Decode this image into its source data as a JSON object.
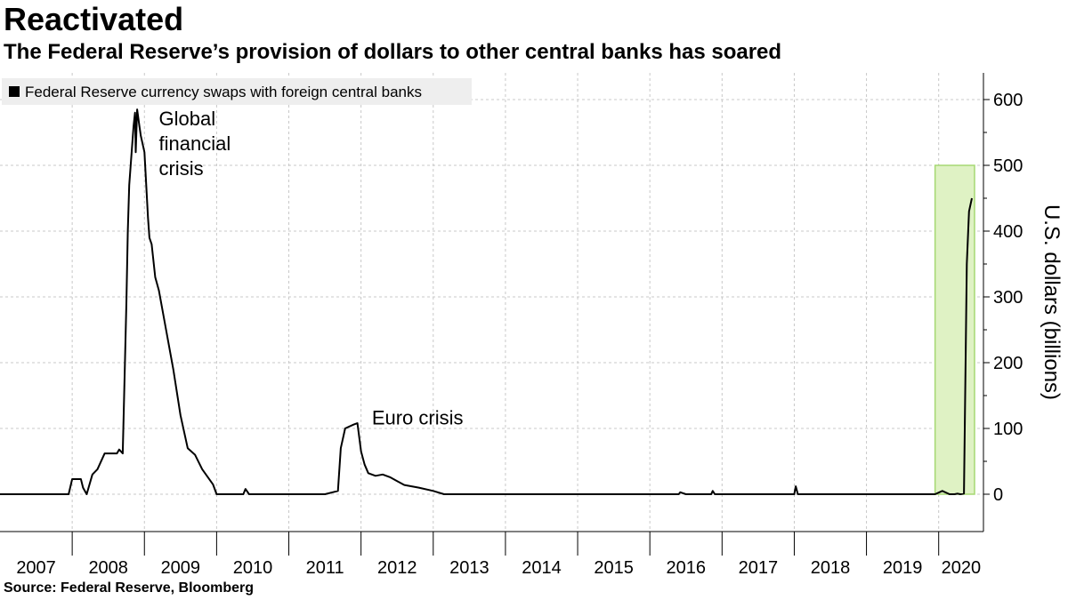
{
  "header": {
    "title": "Reactivated",
    "subtitle": "The Federal Reserve’s provision of dollars to other central banks has soared"
  },
  "footer": {
    "source": "Source: Federal Reserve, Bloomberg"
  },
  "colors": {
    "line": "#000000",
    "highlight_fill": "#dff2c4",
    "highlight_stroke": "#a6d873",
    "grid": "#c8c8c8",
    "legend_bg": "#eeeeee"
  },
  "chart_data": {
    "type": "line",
    "title": "Reactivated",
    "subtitle": "The Federal Reserve’s provision of dollars to other central banks has soared",
    "xlabel": "",
    "ylabel": "U.S. dollars (billions)",
    "xlim": [
      2007.0,
      2020.62
    ],
    "ylim": [
      -55,
      640
    ],
    "yticks": [
      0,
      100,
      200,
      300,
      400,
      500,
      600
    ],
    "year_labels": [
      "2007",
      "2008",
      "2009",
      "2010",
      "2011",
      "2012",
      "2013",
      "2014",
      "2015",
      "2016",
      "2017",
      "2018",
      "2019",
      "2020"
    ],
    "grid": true,
    "legend_position": "top-left",
    "series": [
      {
        "name": "Federal Reserve currency swaps with foreign central banks",
        "x": [
          2007.0,
          2007.95,
          2008.0,
          2008.12,
          2008.15,
          2008.2,
          2008.28,
          2008.35,
          2008.45,
          2008.55,
          2008.62,
          2008.65,
          2008.7,
          2008.75,
          2008.77,
          2008.79,
          2008.85,
          2008.87,
          2008.88,
          2008.9,
          2008.93,
          2008.95,
          2009.0,
          2009.05,
          2009.07,
          2009.1,
          2009.15,
          2009.2,
          2009.3,
          2009.4,
          2009.5,
          2009.6,
          2009.7,
          2009.8,
          2009.95,
          2010.0,
          2010.37,
          2010.4,
          2010.45,
          2010.6,
          2011.5,
          2011.68,
          2011.72,
          2011.78,
          2011.82,
          2011.9,
          2011.95,
          2012.0,
          2012.05,
          2012.1,
          2012.2,
          2012.3,
          2012.4,
          2012.5,
          2012.6,
          2012.8,
          2013.0,
          2013.15,
          2013.4,
          2016.0,
          2016.4,
          2016.42,
          2016.5,
          2016.85,
          2016.87,
          2016.9,
          2018.0,
          2018.02,
          2018.05,
          2019.1,
          2019.75,
          2019.95,
          2020.05,
          2020.15,
          2020.22,
          2020.26,
          2020.3,
          2020.35,
          2020.39,
          2020.42,
          2020.46
        ],
        "values": [
          0,
          0,
          23,
          23,
          10,
          0,
          30,
          38,
          62,
          62,
          62,
          68,
          62,
          290,
          400,
          470,
          560,
          580,
          520,
          585,
          560,
          545,
          520,
          420,
          390,
          380,
          330,
          310,
          250,
          190,
          120,
          70,
          60,
          38,
          15,
          0,
          0,
          8,
          0,
          0,
          0,
          5,
          70,
          100,
          102,
          106,
          108,
          65,
          45,
          32,
          28,
          30,
          26,
          20,
          14,
          10,
          5,
          0,
          0,
          0,
          0,
          3,
          0,
          0,
          5,
          0,
          0,
          12,
          0,
          0,
          0,
          0,
          5,
          0,
          0,
          1,
          0,
          1,
          350,
          430,
          450
        ]
      }
    ],
    "highlight_region": {
      "x": [
        2019.95,
        2020.62
      ],
      "y": [
        0,
        500
      ]
    },
    "annotations": [
      {
        "text": "Global financial crisis",
        "lines": [
          "Global",
          "financial",
          "crisis"
        ],
        "x": 2009.2,
        "y": 580
      },
      {
        "text": "Euro crisis",
        "lines": [
          "Euro crisis"
        ],
        "x": 2012.15,
        "y": 125
      }
    ]
  }
}
